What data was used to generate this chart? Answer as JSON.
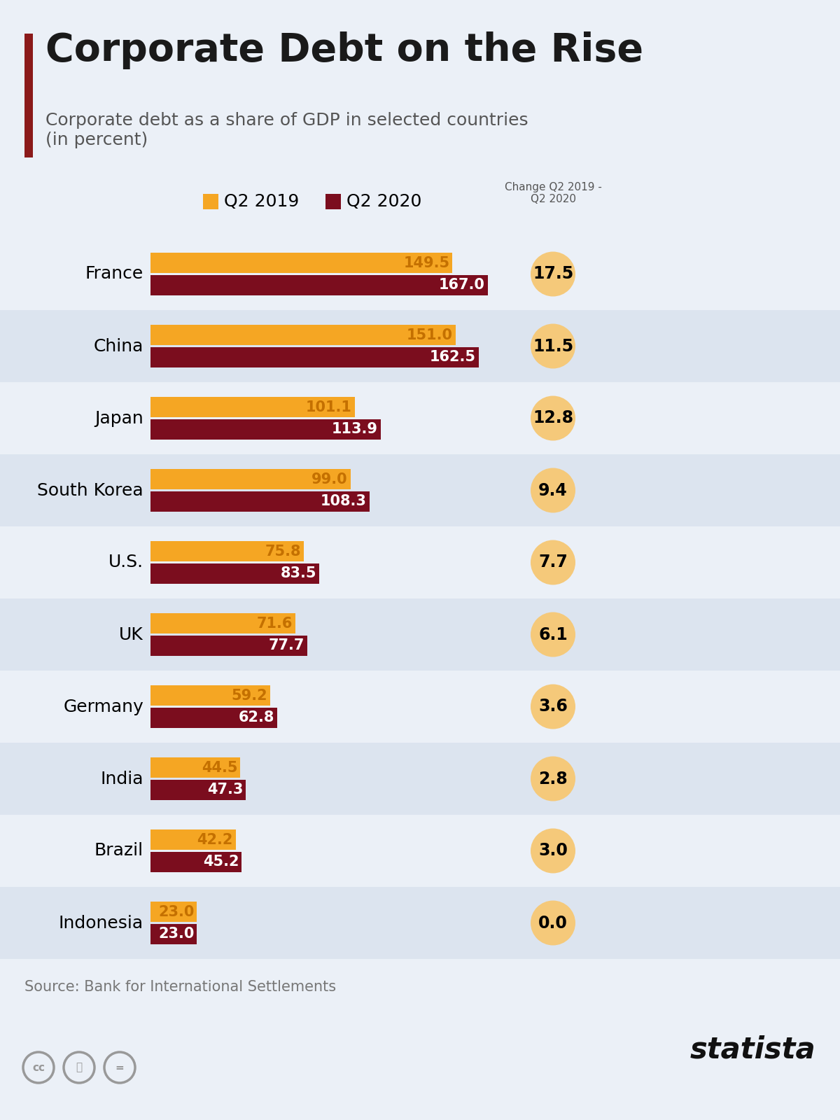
{
  "title": "Corporate Debt on the Rise",
  "subtitle": "Corporate debt as a share of GDP in selected countries\n(in percent)",
  "source": "Source: Bank for International Settlements",
  "legend_labels": [
    "Q2 2019",
    "Q2 2020"
  ],
  "change_label": "Change Q2 2019 -\nQ2 2020",
  "countries": [
    "France",
    "China",
    "Japan",
    "South Korea",
    "U.S.",
    "UK",
    "Germany",
    "India",
    "Brazil",
    "Indonesia"
  ],
  "q2_2019": [
    149.5,
    151.0,
    101.1,
    99.0,
    75.8,
    71.6,
    59.2,
    44.5,
    42.2,
    23.0
  ],
  "q2_2020": [
    167.0,
    162.5,
    113.9,
    108.3,
    83.5,
    77.7,
    62.8,
    47.3,
    45.2,
    23.0
  ],
  "changes": [
    17.5,
    11.5,
    12.8,
    9.4,
    7.7,
    6.1,
    3.6,
    2.8,
    3.0,
    0.0
  ],
  "bar_color_2019": "#F5A623",
  "bar_color_2020": "#7B0D1E",
  "change_circle_color": "#F5C97A",
  "bg_color": "#EBF0F7",
  "row_alt_color": "#DCE4EF",
  "title_color": "#1A1A1A",
  "subtitle_color": "#555555",
  "accent_bar_color": "#8B1A1A",
  "title_fontsize": 40,
  "subtitle_fontsize": 18,
  "country_fontsize": 18,
  "bar_value_fontsize": 15,
  "change_fontsize": 17,
  "legend_fontsize": 18,
  "source_fontsize": 15,
  "max_bar_val": 175
}
